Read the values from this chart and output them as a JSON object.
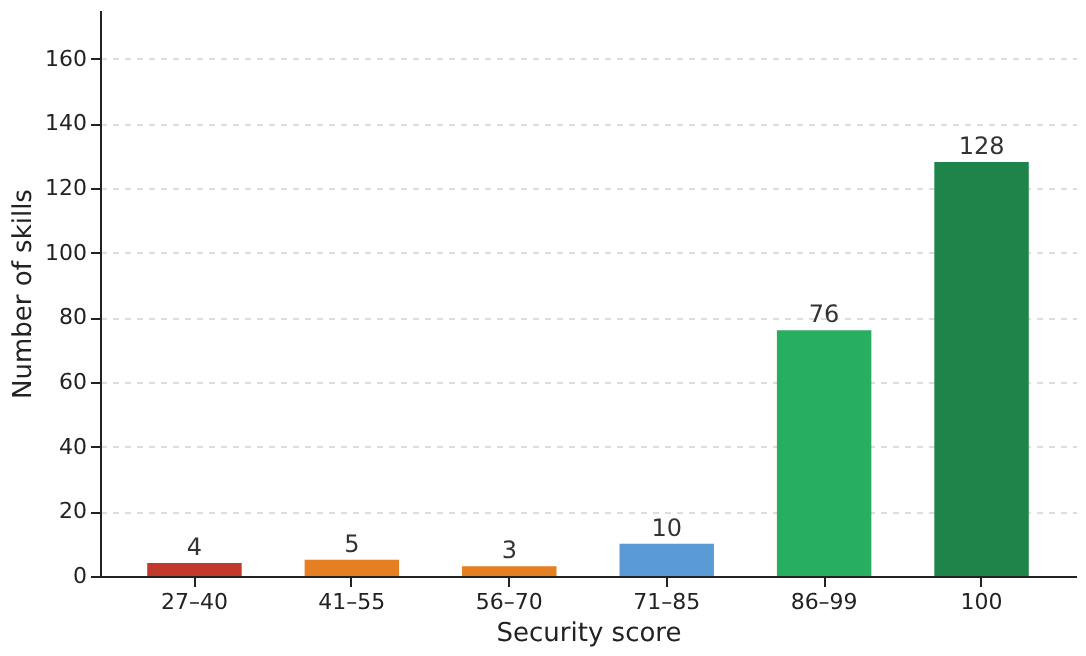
{
  "chart_data": {
    "type": "bar",
    "xlabel": "Security score",
    "ylabel": "Number of skills",
    "categories": [
      "27–40",
      "41–55",
      "56–70",
      "71–85",
      "86–99",
      "100"
    ],
    "values": [
      4,
      5,
      3,
      10,
      76,
      128
    ],
    "colors": [
      "#c0392b",
      "#e67e22",
      "#e67e22",
      "#5b9bd5",
      "#27ae60",
      "#1e8449"
    ],
    "ylim": [
      0,
      175
    ],
    "yticks": [
      0,
      20,
      40,
      60,
      80,
      100,
      120,
      140,
      160
    ],
    "grid": "y",
    "data_labels": true
  }
}
